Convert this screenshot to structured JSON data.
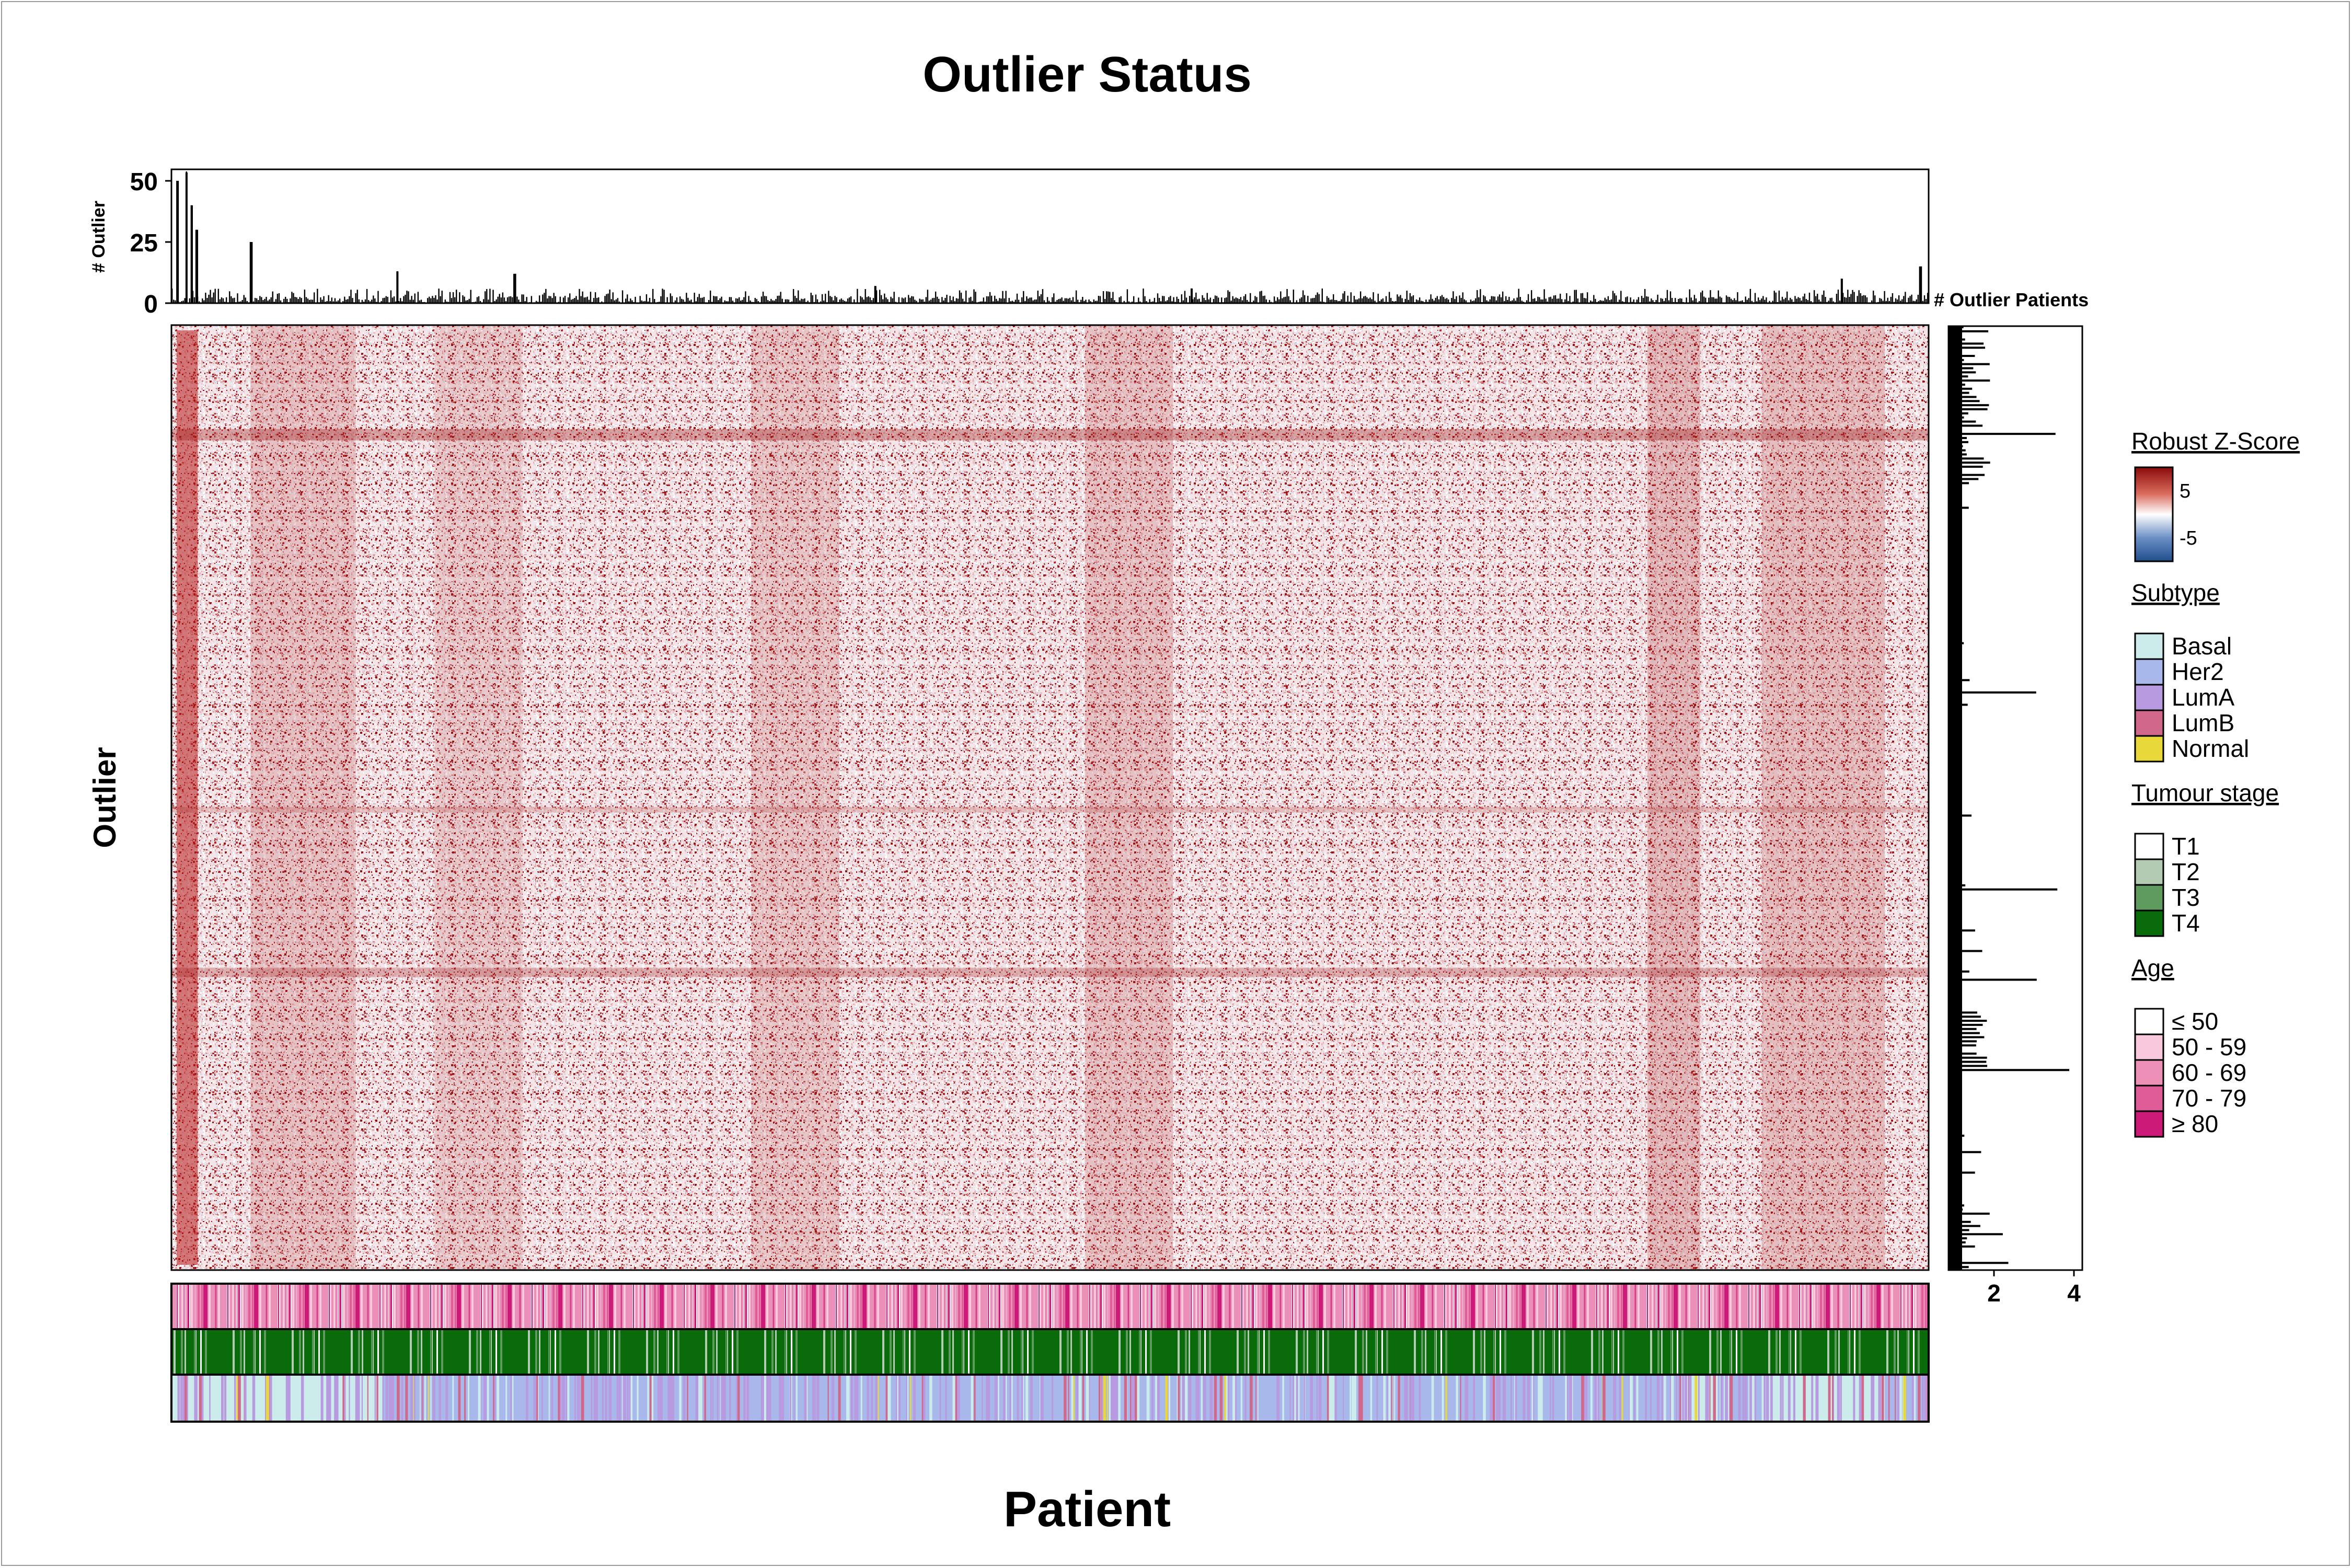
{
  "chart_data": {
    "type": "heatmap",
    "title": "Outlier Status",
    "xlabel": "Patient",
    "ylabel": "Outlier",
    "top_bar": {
      "ylabel": "# Outlier",
      "ticks": [
        "50",
        "25",
        "0"
      ],
      "ylim": [
        0,
        55
      ],
      "peaks": [
        {
          "position": 0.003,
          "value": 50
        },
        {
          "position": 0.008,
          "value": 54
        },
        {
          "position": 0.011,
          "value": 40
        },
        {
          "position": 0.014,
          "value": 30
        },
        {
          "position": 0.045,
          "value": 25
        },
        {
          "position": 0.128,
          "value": 13
        },
        {
          "position": 0.195,
          "value": 12
        },
        {
          "position": 0.4,
          "value": 7
        },
        {
          "position": 0.58,
          "value": 6
        },
        {
          "position": 0.95,
          "value": 10
        },
        {
          "position": 0.995,
          "value": 15
        }
      ]
    },
    "side_bar": {
      "label": "# Outlier Patients",
      "ticks": [
        "2",
        "4"
      ],
      "xlim": [
        1,
        5
      ]
    },
    "legend": [
      {
        "title": "Robust Z-Score",
        "type": "gradient",
        "labels": [
          "5",
          "-5"
        ],
        "colors": [
          "#8b0a0a",
          "#d96b5c",
          "#ffffff",
          "#6b8fc5",
          "#1f4e8c"
        ]
      },
      {
        "title": "Subtype",
        "items": [
          {
            "label": "Basal",
            "color": "#ccecec"
          },
          {
            "label": "Her2",
            "color": "#a8b8ea"
          },
          {
            "label": "LumA",
            "color": "#b89ae0"
          },
          {
            "label": "LumB",
            "color": "#d1678a"
          },
          {
            "label": "Normal",
            "color": "#e8d83a"
          }
        ]
      },
      {
        "title": "Tumour stage",
        "items": [
          {
            "label": "T1",
            "color": "#ffffff"
          },
          {
            "label": "T2",
            "color": "#b3cbb3"
          },
          {
            "label": "T3",
            "color": "#5f9a5f"
          },
          {
            "label": "T4",
            "color": "#0a6b0a"
          }
        ]
      },
      {
        "title": "Age",
        "items": [
          {
            "label": "≤ 50",
            "color": "#ffffff"
          },
          {
            "label": "50 - 59",
            "color": "#f8c8dc"
          },
          {
            "label": "60 - 69",
            "color": "#ec90b8"
          },
          {
            "label": "70 - 79",
            "color": "#e05c98"
          },
          {
            "label": "≥ 80",
            "color": "#cc1a78"
          }
        ]
      }
    ],
    "covariates": [
      "Age",
      "Tumour stage",
      "Subtype"
    ]
  }
}
